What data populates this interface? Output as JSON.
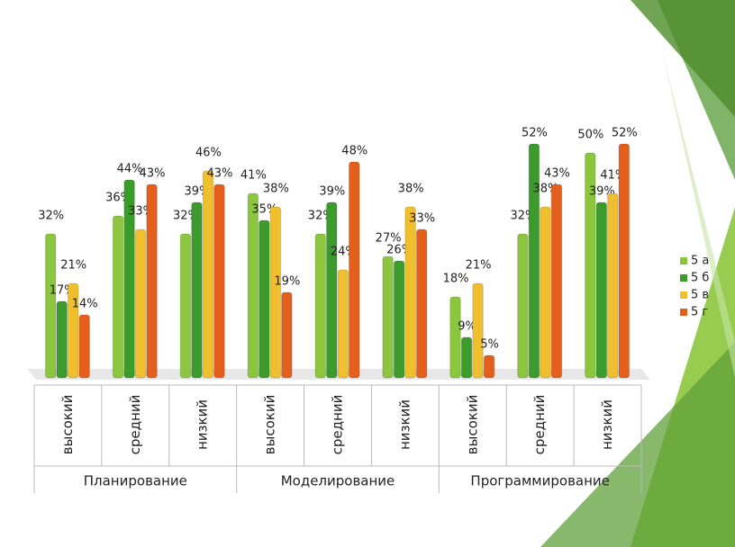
{
  "chart_data": {
    "type": "bar",
    "categories": [
      "высокий",
      "средний",
      "низкий",
      "высокий",
      "средний",
      "низкий",
      "высокий",
      "средний",
      "низкий"
    ],
    "groups": [
      "Планирование",
      "Моделирование",
      "Программирование"
    ],
    "series": [
      {
        "name": "5 а",
        "color": "#8cc63e",
        "values": [
          32,
          36,
          32,
          41,
          32,
          27,
          18,
          32,
          50
        ],
        "value_labels": [
          "32%",
          "36%",
          "32%",
          "41%",
          "32%",
          "27%",
          "18%",
          "32%",
          "50%"
        ]
      },
      {
        "name": "5 б",
        "color": "#3d9a2c",
        "values": [
          17,
          44,
          39,
          35,
          39,
          26,
          9,
          52,
          39
        ],
        "value_labels": [
          "17%",
          "44%",
          "39%",
          "35%",
          "39%",
          "26%",
          "9%",
          "52%",
          "39%"
        ]
      },
      {
        "name": "5 в",
        "color": "#efbf2e",
        "values": [
          21,
          33,
          46,
          38,
          24,
          38,
          21,
          38,
          41
        ],
        "value_labels": [
          "21%",
          "33%",
          "46%",
          "38%",
          "24%",
          "38%",
          "21%",
          "38%",
          "41%"
        ]
      },
      {
        "name": "5 г",
        "color": "#e45f1c",
        "values": [
          14,
          43,
          43,
          19,
          48,
          33,
          5,
          43,
          52
        ],
        "value_labels": [
          "14%",
          "43%",
          "43%",
          "19%",
          "48%",
          "33%",
          "5%",
          "43%",
          "52%"
        ]
      }
    ],
    "legend": "right"
  }
}
